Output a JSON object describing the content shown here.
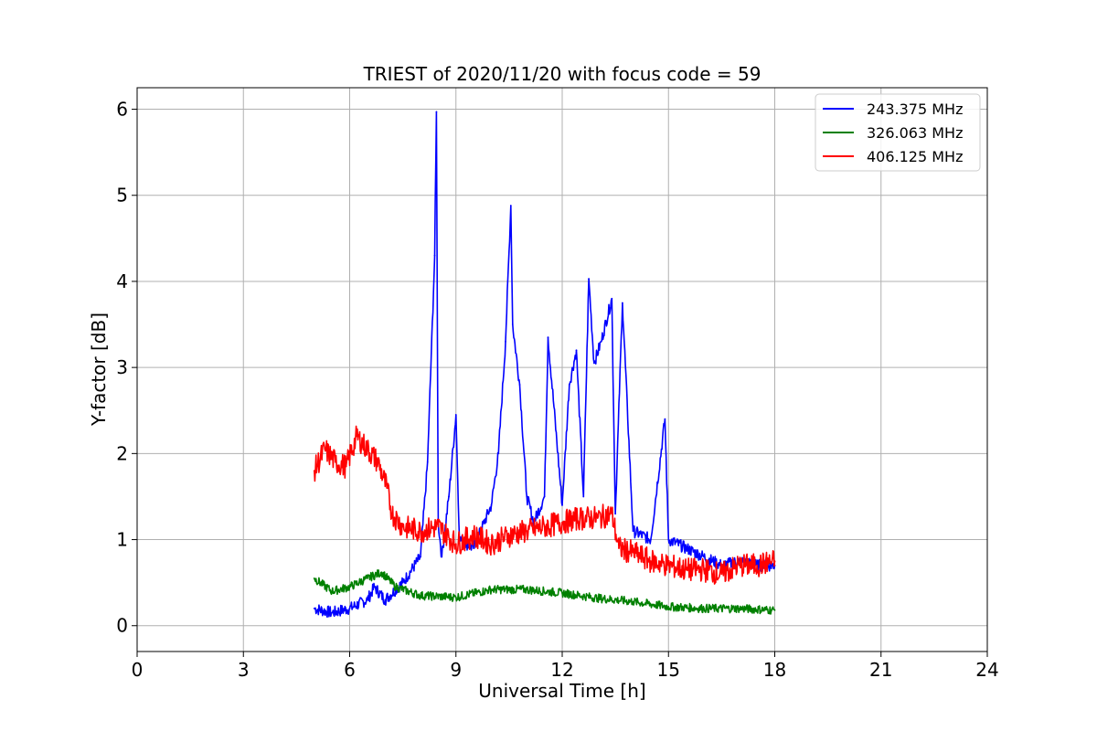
{
  "chart_data": {
    "type": "line",
    "title": "TRIEST of 2020/11/20 with focus code = 59",
    "xlabel": "Universal Time [h]",
    "ylabel": "Y-factor [dB]",
    "xlim": [
      0,
      24
    ],
    "ylim": [
      -0.3,
      6.25
    ],
    "xticks": [
      0,
      3,
      6,
      9,
      12,
      15,
      18,
      21,
      24
    ],
    "yticks": [
      0,
      1,
      2,
      3,
      4,
      5,
      6
    ],
    "grid": true,
    "legend_position": "top-right",
    "series": [
      {
        "name": "243.375 MHz",
        "color": "#0000ff",
        "x": [
          5.0,
          5.5,
          6.0,
          6.5,
          6.7,
          7.0,
          7.5,
          8.0,
          8.2,
          8.4,
          8.45,
          8.5,
          8.6,
          8.8,
          9.0,
          9.1,
          9.5,
          10.0,
          10.2,
          10.4,
          10.55,
          10.6,
          10.8,
          11.0,
          11.2,
          11.5,
          11.6,
          12.0,
          12.2,
          12.4,
          12.6,
          12.75,
          12.9,
          13.1,
          13.4,
          13.5,
          13.7,
          14.0,
          14.5,
          14.9,
          15.0,
          15.5,
          16.0,
          16.5,
          17.0,
          17.5,
          18.0
        ],
        "y": [
          0.2,
          0.15,
          0.2,
          0.3,
          0.45,
          0.3,
          0.5,
          0.8,
          1.9,
          4.3,
          5.97,
          1.2,
          0.8,
          1.5,
          2.45,
          1.0,
          0.9,
          1.4,
          2.0,
          3.3,
          4.88,
          3.5,
          2.8,
          1.5,
          1.2,
          1.5,
          3.35,
          1.4,
          2.8,
          3.2,
          1.5,
          4.03,
          3.05,
          3.3,
          3.8,
          1.3,
          3.75,
          1.1,
          1.0,
          2.4,
          1.0,
          0.9,
          0.8,
          0.7,
          0.75,
          0.7,
          0.7
        ]
      },
      {
        "name": "326.063 MHz",
        "color": "#008000",
        "x": [
          5.0,
          5.5,
          6.0,
          6.5,
          6.9,
          7.3,
          8.0,
          9.0,
          10.0,
          11.0,
          12.0,
          13.0,
          14.0,
          15.0,
          16.0,
          17.0,
          18.0
        ],
        "y": [
          0.55,
          0.4,
          0.45,
          0.55,
          0.62,
          0.45,
          0.35,
          0.33,
          0.42,
          0.42,
          0.38,
          0.32,
          0.28,
          0.22,
          0.2,
          0.2,
          0.18
        ]
      },
      {
        "name": "406.125 MHz",
        "color": "#ff0000",
        "x": [
          5.0,
          5.3,
          5.6,
          5.9,
          6.2,
          6.5,
          6.8,
          7.05,
          7.2,
          7.5,
          8.0,
          8.5,
          9.0,
          9.5,
          10.0,
          10.5,
          11.0,
          11.5,
          12.0,
          12.5,
          13.0,
          13.4,
          13.6,
          14.0,
          14.5,
          15.0,
          15.5,
          16.0,
          16.5,
          17.0,
          17.5,
          18.0
        ],
        "y": [
          1.8,
          2.05,
          1.9,
          1.85,
          2.2,
          2.05,
          1.9,
          1.6,
          1.3,
          1.15,
          1.1,
          1.15,
          0.95,
          1.05,
          0.95,
          1.05,
          1.1,
          1.15,
          1.2,
          1.25,
          1.25,
          1.3,
          0.9,
          0.85,
          0.75,
          0.7,
          0.65,
          0.65,
          0.6,
          0.7,
          0.7,
          0.75
        ]
      }
    ]
  }
}
